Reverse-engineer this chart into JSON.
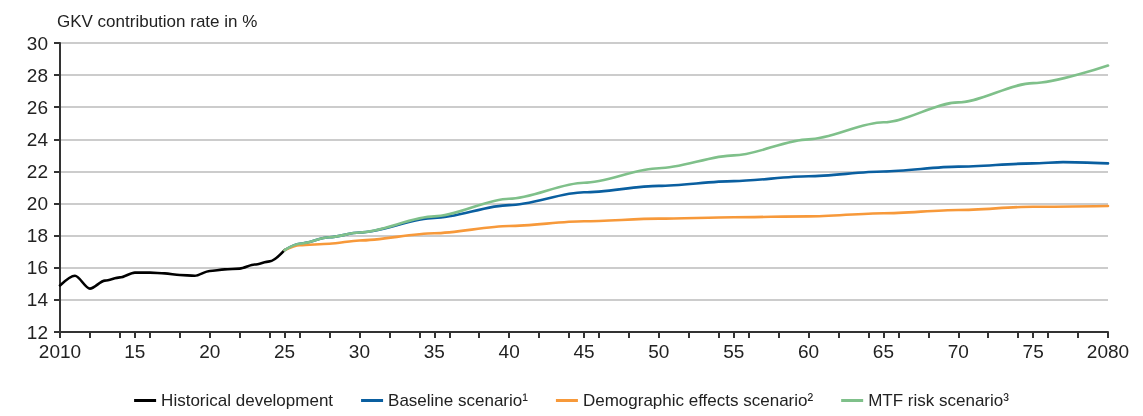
{
  "chart_data": {
    "type": "line",
    "ylabel": "GKV contribution rate in %",
    "xlim": [
      2010,
      2080
    ],
    "xticks": [
      {
        "value": 2010,
        "label": "2010"
      },
      {
        "value": 2015,
        "label": "15"
      },
      {
        "value": 2020,
        "label": "20"
      },
      {
        "value": 2025,
        "label": "25"
      },
      {
        "value": 2030,
        "label": "30"
      },
      {
        "value": 2035,
        "label": "35"
      },
      {
        "value": 2040,
        "label": "40"
      },
      {
        "value": 2045,
        "label": "45"
      },
      {
        "value": 2050,
        "label": "50"
      },
      {
        "value": 2055,
        "label": "55"
      },
      {
        "value": 2060,
        "label": "60"
      },
      {
        "value": 2065,
        "label": "65"
      },
      {
        "value": 2070,
        "label": "70"
      },
      {
        "value": 2075,
        "label": "75"
      },
      {
        "value": 2080,
        "label": "2080"
      }
    ],
    "ylim": [
      12,
      30
    ],
    "yticks": [
      12,
      14,
      16,
      18,
      20,
      22,
      24,
      26,
      28,
      30
    ],
    "grid": "y",
    "legend": "bottom",
    "marker": "none",
    "line_style": "solid",
    "series": [
      {
        "name": "Historical development",
        "color": "#000000",
        "x": [
          2010,
          2011,
          2012,
          2013,
          2014,
          2015,
          2016,
          2017,
          2018,
          2019,
          2020,
          2021,
          2022,
          2023,
          2024,
          2025
        ],
        "values": [
          14.9,
          15.5,
          14.7,
          15.2,
          15.4,
          15.7,
          15.7,
          15.65,
          15.55,
          15.5,
          15.8,
          15.9,
          15.95,
          16.2,
          16.4,
          17.1
        ]
      },
      {
        "name": "Baseline scenario¹",
        "color": "#0a5fa0",
        "x": [
          2025,
          2026,
          2028,
          2030,
          2035,
          2040,
          2045,
          2050,
          2055,
          2060,
          2065,
          2070,
          2075,
          2077,
          2080
        ],
        "values": [
          17.1,
          17.5,
          17.9,
          18.2,
          19.1,
          19.9,
          20.7,
          21.1,
          21.4,
          21.7,
          22.0,
          22.3,
          22.5,
          22.58,
          22.5
        ]
      },
      {
        "name": "Demographic effects scenario²",
        "color": "#f7993a",
        "x": [
          2025,
          2026,
          2028,
          2030,
          2035,
          2040,
          2045,
          2050,
          2055,
          2060,
          2065,
          2070,
          2075,
          2080
        ],
        "values": [
          17.1,
          17.4,
          17.5,
          17.7,
          18.15,
          18.6,
          18.9,
          19.06,
          19.15,
          19.2,
          19.4,
          19.6,
          19.8,
          19.85
        ]
      },
      {
        "name": "MTF risk scenario³",
        "color": "#7fc08a",
        "x": [
          2025,
          2026,
          2028,
          2030,
          2035,
          2040,
          2045,
          2050,
          2055,
          2060,
          2065,
          2070,
          2075,
          2080
        ],
        "values": [
          17.1,
          17.5,
          17.9,
          18.2,
          19.2,
          20.3,
          21.3,
          22.2,
          23.0,
          24.0,
          25.06,
          26.3,
          27.5,
          28.6
        ]
      }
    ]
  }
}
